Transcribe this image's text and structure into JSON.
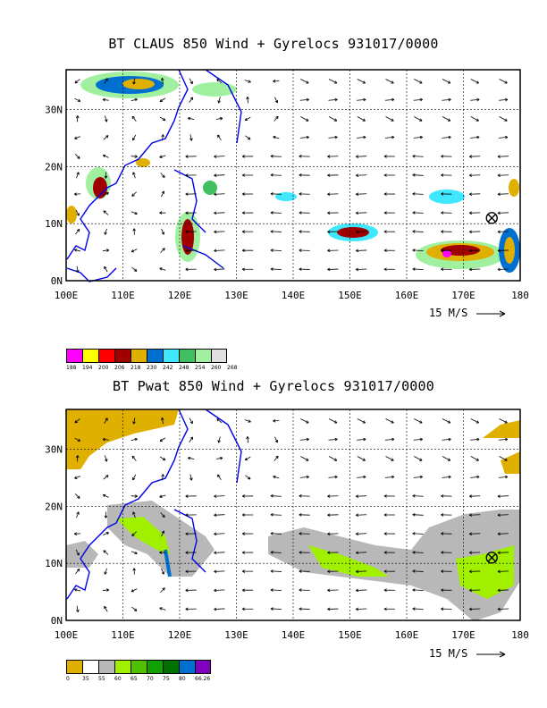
{
  "panels": [
    {
      "title": "BT CLAUS 850 Wind + Gyrelocs 931017/0000",
      "x_ticks": [
        "100E",
        "110E",
        "120E",
        "130E",
        "140E",
        "150E",
        "160E",
        "170E",
        "180"
      ],
      "y_ticks": [
        "0N",
        "10N",
        "20N",
        "30N"
      ],
      "scale_label": "15 M/S",
      "cyclone_marker": {
        "lon": 175,
        "lat": 11
      },
      "legend": {
        "colors": [
          "#ff00ff",
          "#ffff00",
          "#ff0000",
          "#a00000",
          "#e0b000",
          "#0070d0",
          "#40e8ff",
          "#40c060",
          "#a0f0a0",
          "#e0e0e0"
        ],
        "labels": [
          "188",
          "194",
          "200",
          "206",
          "218",
          "230",
          "242",
          "248",
          "254",
          "260",
          "268"
        ]
      }
    },
    {
      "title": "BT Pwat 850 Wind + Gyrelocs 931017/0000",
      "x_ticks": [
        "100E",
        "110E",
        "120E",
        "130E",
        "140E",
        "150E",
        "160E",
        "170E",
        "180"
      ],
      "y_ticks": [
        "0N",
        "10N",
        "20N",
        "30N"
      ],
      "scale_label": "15 M/S",
      "cyclone_marker": {
        "lon": 175,
        "lat": 11
      },
      "legend": {
        "colors": [
          "#e0b000",
          "#ffffff",
          "#b8b8b8",
          "#a0f000",
          "#50c000",
          "#10a000",
          "#007000",
          "#0070d0",
          "#8000c0"
        ],
        "labels": [
          "0",
          "35",
          "55",
          "60",
          "65",
          "70",
          "75",
          "80",
          "66.26"
        ]
      }
    }
  ]
}
